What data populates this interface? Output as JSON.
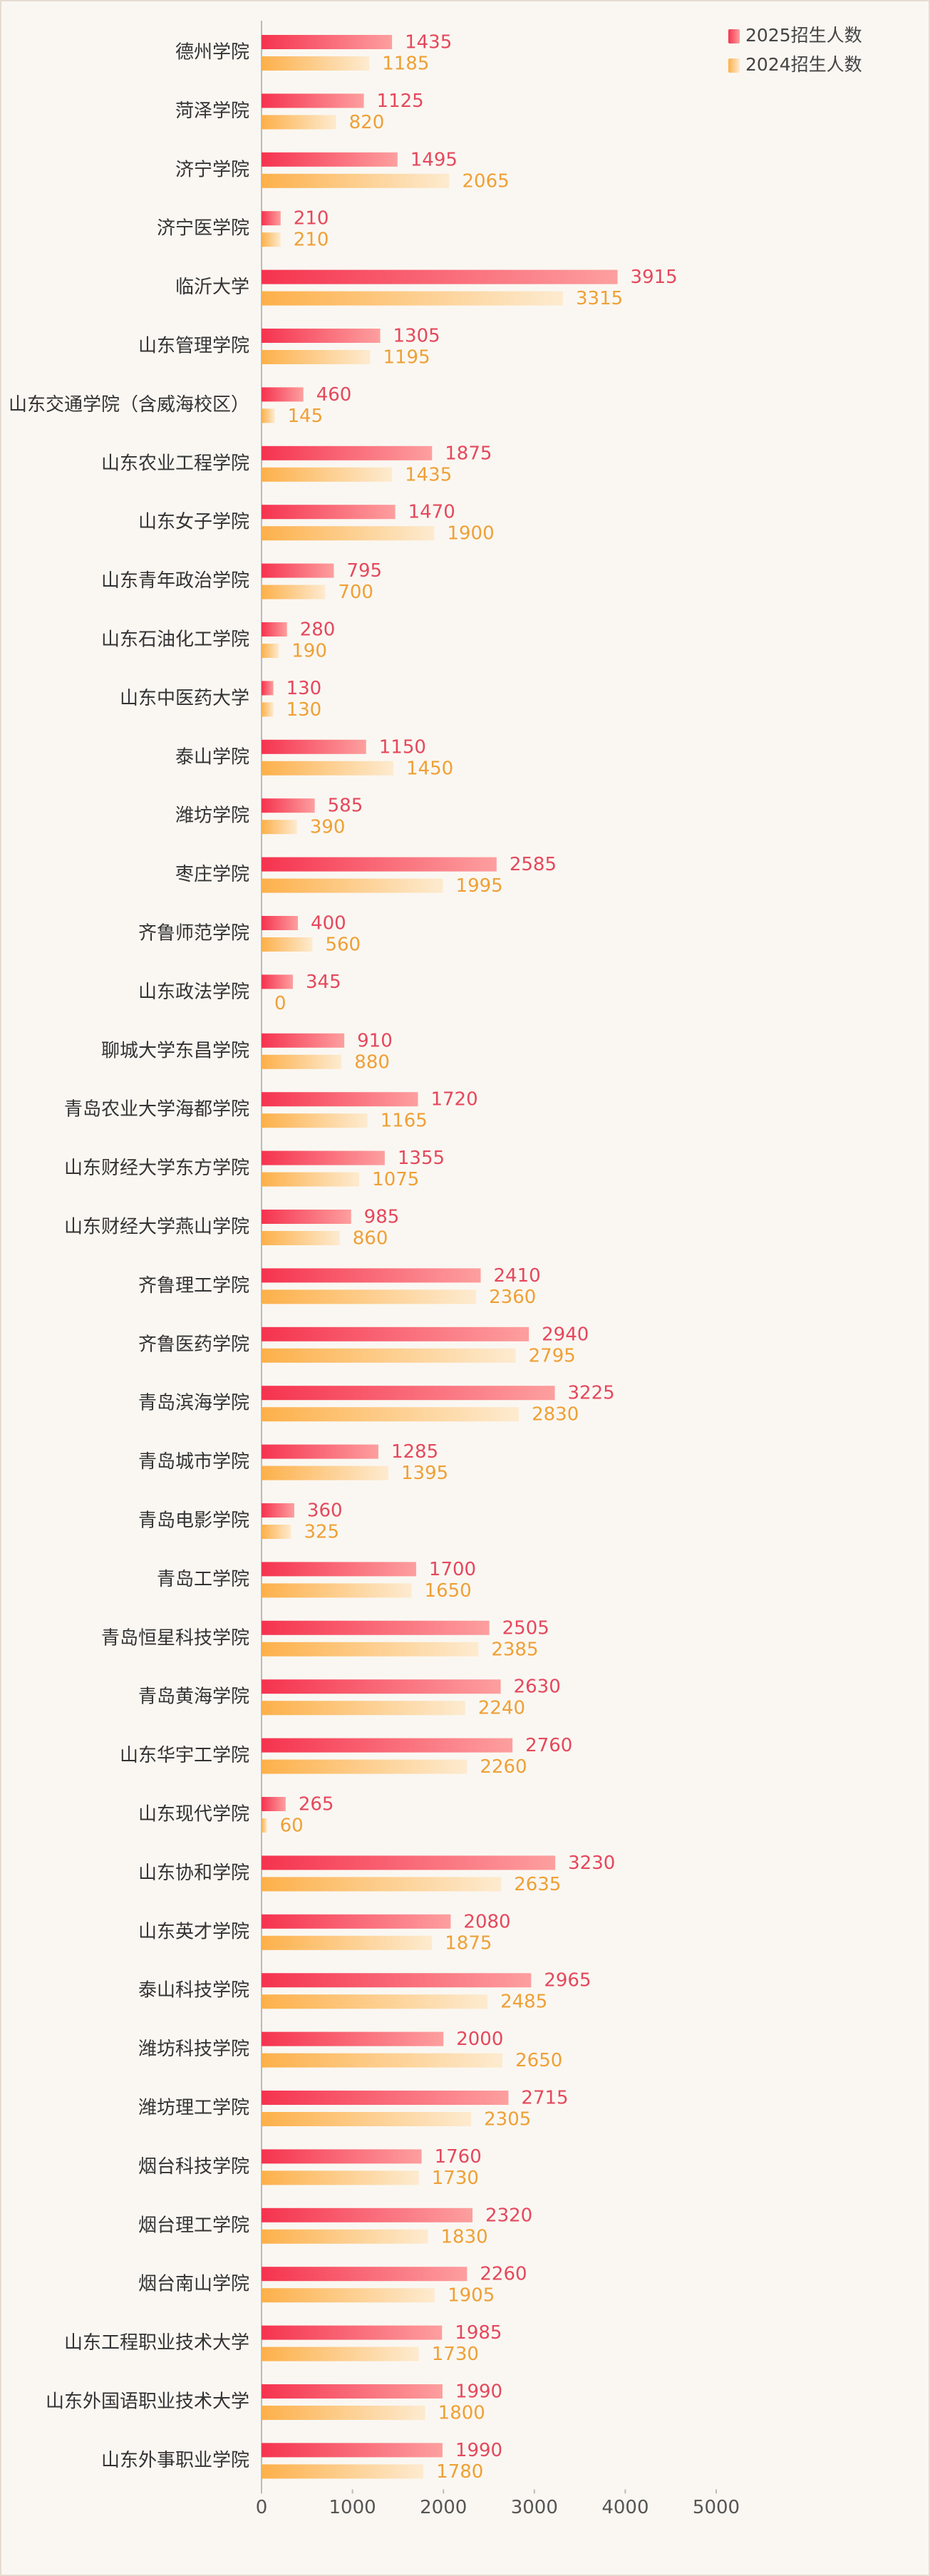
{
  "chart_data": {
    "type": "bar",
    "orientation": "horizontal",
    "categories": [
      "德州学院",
      "菏泽学院",
      "济宁学院",
      "济宁医学院",
      "临沂大学",
      "山东管理学院",
      "山东交通学院（含威海校区）",
      "山东农业工程学院",
      "山东女子学院",
      "山东青年政治学院",
      "山东石油化工学院",
      "山东中医药大学",
      "泰山学院",
      "潍坊学院",
      "枣庄学院",
      "齐鲁师范学院",
      "山东政法学院",
      "聊城大学东昌学院",
      "青岛农业大学海都学院",
      "山东财经大学东方学院",
      "山东财经大学燕山学院",
      "齐鲁理工学院",
      "齐鲁医药学院",
      "青岛滨海学院",
      "青岛城市学院",
      "青岛电影学院",
      "青岛工学院",
      "青岛恒星科技学院",
      "青岛黄海学院",
      "山东华宇工学院",
      "山东现代学院",
      "山东协和学院",
      "山东英才学院",
      "泰山科技学院",
      "潍坊科技学院",
      "潍坊理工学院",
      "烟台科技学院",
      "烟台理工学院",
      "烟台南山学院",
      "山东工程职业技术大学",
      "山东外国语职业技术大学",
      "山东外事职业学院"
    ],
    "series": [
      {
        "name": "2025招生人数",
        "color": "#f5334f",
        "values": [
          1435,
          1125,
          1495,
          210,
          3915,
          1305,
          460,
          1875,
          1470,
          795,
          280,
          130,
          1150,
          585,
          2585,
          400,
          345,
          910,
          1720,
          1355,
          985,
          2410,
          2940,
          3225,
          1285,
          360,
          1700,
          2505,
          2630,
          2760,
          265,
          3230,
          2080,
          2965,
          2000,
          2715,
          1760,
          2320,
          2260,
          1985,
          1990,
          1990
        ]
      },
      {
        "name": "2024招生人数",
        "color": "#fdb04a",
        "values": [
          1185,
          820,
          2065,
          210,
          3315,
          1195,
          145,
          1435,
          1900,
          700,
          190,
          130,
          1450,
          390,
          1995,
          560,
          0,
          880,
          1165,
          1075,
          860,
          2360,
          2795,
          2830,
          1395,
          325,
          1650,
          2385,
          2240,
          2260,
          60,
          2635,
          1875,
          2485,
          2650,
          2305,
          1730,
          1830,
          1905,
          1730,
          1800,
          1780
        ]
      }
    ],
    "xlim": [
      0,
      5000
    ],
    "xticks": [
      0,
      1000,
      2000,
      3000,
      4000,
      5000
    ],
    "grid": false,
    "legend": "top-right"
  }
}
